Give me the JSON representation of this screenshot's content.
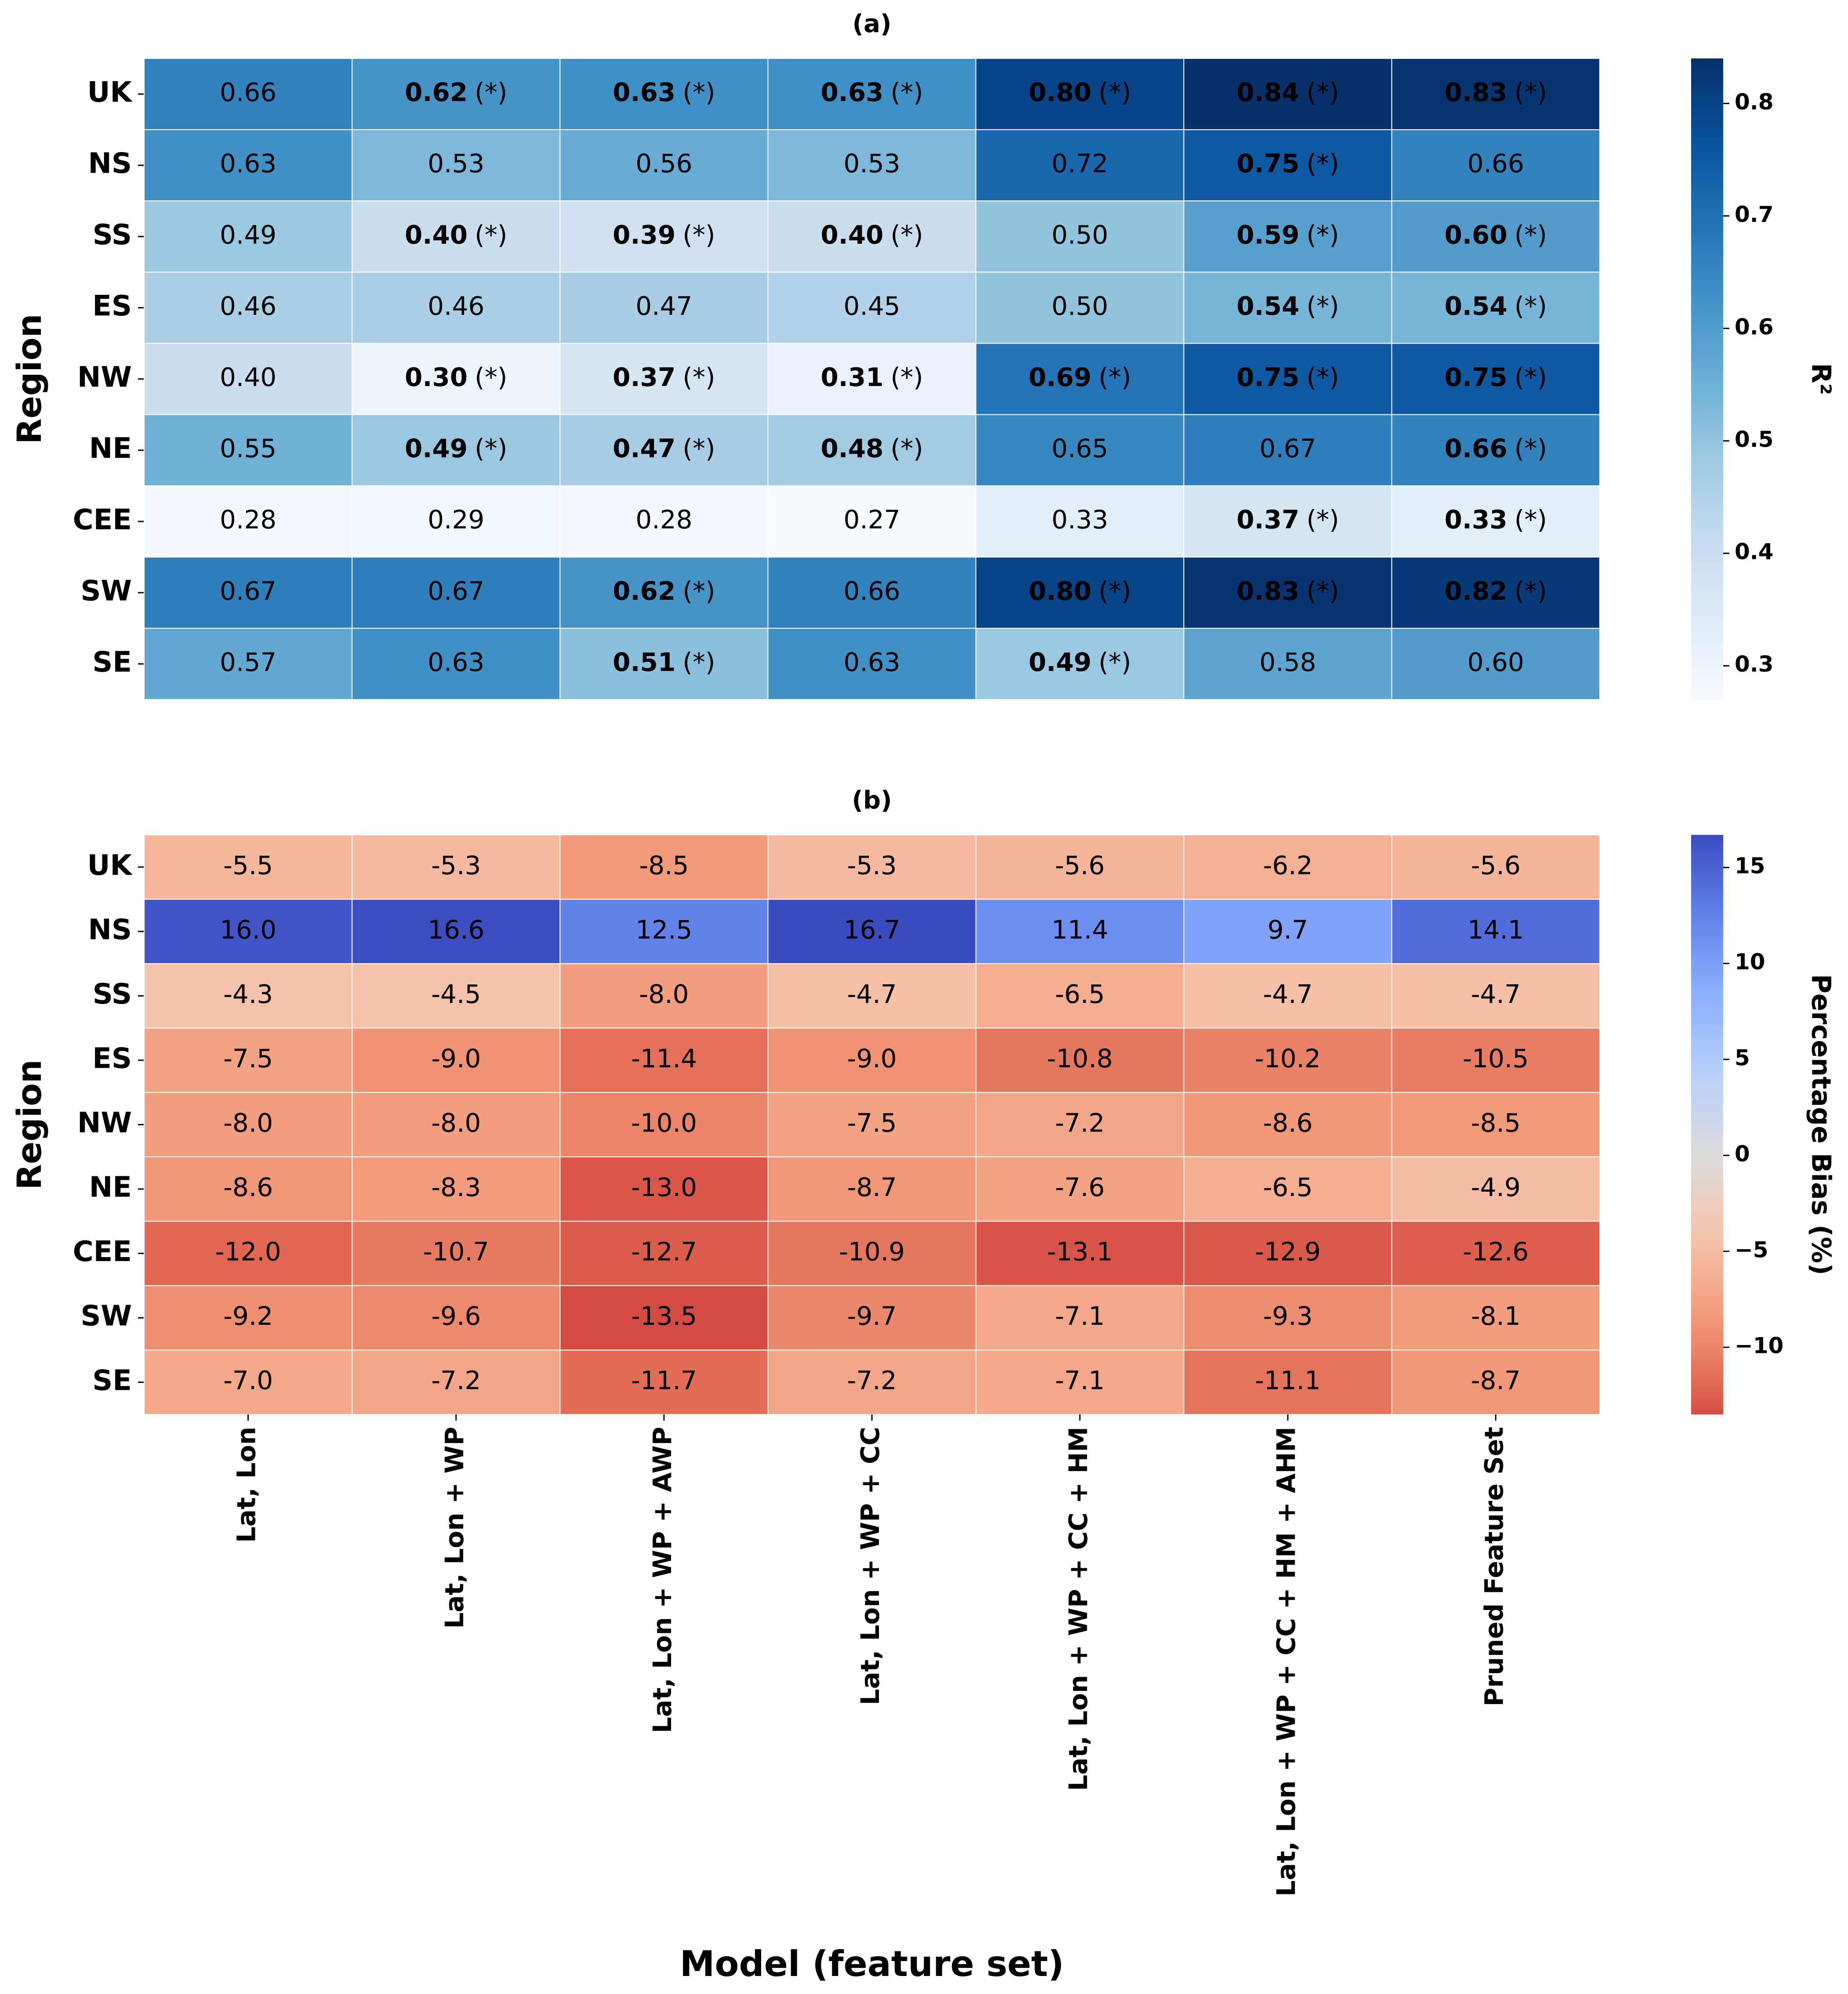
{
  "chart_data": [
    {
      "type": "heatmap",
      "title": "(a)",
      "y_label": "Region",
      "colorbar_label": "R²",
      "rows": [
        "UK",
        "NS",
        "SS",
        "ES",
        "NW",
        "NE",
        "CEE",
        "SW",
        "SE"
      ],
      "values": [
        [
          0.66,
          0.62,
          0.63,
          0.63,
          0.8,
          0.84,
          0.83
        ],
        [
          0.63,
          0.53,
          0.56,
          0.53,
          0.72,
          0.75,
          0.66
        ],
        [
          0.49,
          0.4,
          0.39,
          0.4,
          0.5,
          0.59,
          0.6
        ],
        [
          0.46,
          0.46,
          0.47,
          0.45,
          0.5,
          0.54,
          0.54
        ],
        [
          0.4,
          0.3,
          0.37,
          0.31,
          0.69,
          0.75,
          0.75
        ],
        [
          0.55,
          0.49,
          0.47,
          0.48,
          0.65,
          0.67,
          0.66
        ],
        [
          0.28,
          0.29,
          0.28,
          0.27,
          0.33,
          0.37,
          0.33
        ],
        [
          0.67,
          0.67,
          0.62,
          0.66,
          0.8,
          0.83,
          0.82
        ],
        [
          0.57,
          0.63,
          0.51,
          0.63,
          0.49,
          0.58,
          0.6
        ]
      ],
      "value_labels": [
        [
          "0.66",
          "0.62",
          "0.63",
          "0.63",
          "0.80",
          "0.84",
          "0.83"
        ],
        [
          "0.63",
          "0.53",
          "0.56",
          "0.53",
          "0.72",
          "0.75",
          "0.66"
        ],
        [
          "0.49",
          "0.40",
          "0.39",
          "0.40",
          "0.50",
          "0.59",
          "0.60"
        ],
        [
          "0.46",
          "0.46",
          "0.47",
          "0.45",
          "0.50",
          "0.54",
          "0.54"
        ],
        [
          "0.40",
          "0.30",
          "0.37",
          "0.31",
          "0.69",
          "0.75",
          "0.75"
        ],
        [
          "0.55",
          "0.49",
          "0.47",
          "0.48",
          "0.65",
          "0.67",
          "0.66"
        ],
        [
          "0.28",
          "0.29",
          "0.28",
          "0.27",
          "0.33",
          "0.37",
          "0.33"
        ],
        [
          "0.67",
          "0.67",
          "0.62",
          "0.66",
          "0.80",
          "0.83",
          "0.82"
        ],
        [
          "0.57",
          "0.63",
          "0.51",
          "0.63",
          "0.49",
          "0.58",
          "0.60"
        ]
      ],
      "significance_marker": "(*)",
      "significant": [
        [
          false,
          true,
          true,
          true,
          true,
          true,
          true
        ],
        [
          false,
          false,
          false,
          false,
          false,
          true,
          false
        ],
        [
          false,
          true,
          true,
          true,
          false,
          true,
          true
        ],
        [
          false,
          false,
          false,
          false,
          false,
          true,
          true
        ],
        [
          false,
          true,
          true,
          true,
          true,
          true,
          true
        ],
        [
          false,
          true,
          true,
          true,
          false,
          false,
          true
        ],
        [
          false,
          false,
          false,
          false,
          false,
          true,
          true
        ],
        [
          false,
          false,
          true,
          false,
          true,
          true,
          true
        ],
        [
          false,
          false,
          true,
          false,
          true,
          false,
          false
        ]
      ],
      "colormap": [
        "#f7fbff",
        "#deebf7",
        "#c6dbef",
        "#9ecae1",
        "#6baed6",
        "#4292c6",
        "#2171b5",
        "#08519c",
        "#08306b"
      ],
      "clim": [
        0.27,
        0.84
      ],
      "ylim": [
        0.27,
        0.84
      ],
      "yticks": [
        0.3,
        0.4,
        0.5,
        0.6,
        0.7,
        0.8
      ]
    },
    {
      "type": "heatmap",
      "title": "(b)",
      "y_label": "Region",
      "x_label": "Model (feature set)",
      "colorbar_label": "Percentage Bias (%)",
      "rows": [
        "UK",
        "NS",
        "SS",
        "ES",
        "NW",
        "NE",
        "CEE",
        "SW",
        "SE"
      ],
      "columns": [
        "Lat, Lon",
        "Lat, Lon + WP",
        "Lat, Lon + WP + AWP",
        "Lat, Lon + WP + CC",
        "Lat, Lon + WP + CC + HM",
        "Lat, Lon + WP + CC + HM + AHM",
        "Pruned Feature Set"
      ],
      "values": [
        [
          -5.5,
          -5.3,
          -8.5,
          -5.3,
          -5.6,
          -6.2,
          -5.6
        ],
        [
          16.0,
          16.6,
          12.5,
          16.7,
          11.4,
          9.7,
          14.1
        ],
        [
          -4.3,
          -4.5,
          -8.0,
          -4.7,
          -6.5,
          -4.7,
          -4.7
        ],
        [
          -7.5,
          -9.0,
          -11.4,
          -9.0,
          -10.8,
          -10.2,
          -10.5
        ],
        [
          -8.0,
          -8.0,
          -10.0,
          -7.5,
          -7.2,
          -8.6,
          -8.5
        ],
        [
          -8.6,
          -8.3,
          -13.0,
          -8.7,
          -7.6,
          -6.5,
          -4.9
        ],
        [
          -12.0,
          -10.7,
          -12.7,
          -10.9,
          -13.1,
          -12.9,
          -12.6
        ],
        [
          -9.2,
          -9.6,
          -13.5,
          -9.7,
          -7.1,
          -9.3,
          -8.1
        ],
        [
          -7.0,
          -7.2,
          -11.7,
          -7.2,
          -7.1,
          -11.1,
          -8.7
        ]
      ],
      "value_labels": [
        [
          "-5.5",
          "-5.3",
          "-8.5",
          "-5.3",
          "-5.6",
          "-6.2",
          "-5.6"
        ],
        [
          "16.0",
          "16.6",
          "12.5",
          "16.7",
          "11.4",
          "9.7",
          "14.1"
        ],
        [
          "-4.3",
          "-4.5",
          "-8.0",
          "-4.7",
          "-6.5",
          "-4.7",
          "-4.7"
        ],
        [
          "-7.5",
          "-9.0",
          "-11.4",
          "-9.0",
          "-10.8",
          "-10.2",
          "-10.5"
        ],
        [
          "-8.0",
          "-8.0",
          "-10.0",
          "-7.5",
          "-7.2",
          "-8.6",
          "-8.5"
        ],
        [
          "-8.6",
          "-8.3",
          "-13.0",
          "-8.7",
          "-7.6",
          "-6.5",
          "-4.9"
        ],
        [
          "-12.0",
          "-10.7",
          "-12.7",
          "-10.9",
          "-13.1",
          "-12.9",
          "-12.6"
        ],
        [
          "-9.2",
          "-9.6",
          "-13.5",
          "-9.7",
          "-7.1",
          "-9.3",
          "-8.1"
        ],
        [
          "-7.0",
          "-7.2",
          "-11.7",
          "-7.2",
          "-7.1",
          "-11.1",
          "-8.7"
        ]
      ],
      "colormap": [
        "#b40426",
        "#de604d",
        "#f39b7a",
        "#f5c4ac",
        "#dddcdc",
        "#b8d0f9",
        "#8db0fe",
        "#6282ea",
        "#3b4cc0"
      ],
      "clim": [
        -16.7,
        16.7
      ],
      "ylim": [
        -13.5,
        16.7
      ],
      "yticks": [
        {
          "value": -10,
          "label": "−10"
        },
        {
          "value": -5,
          "label": "−5"
        },
        0,
        5,
        10,
        15
      ]
    }
  ]
}
